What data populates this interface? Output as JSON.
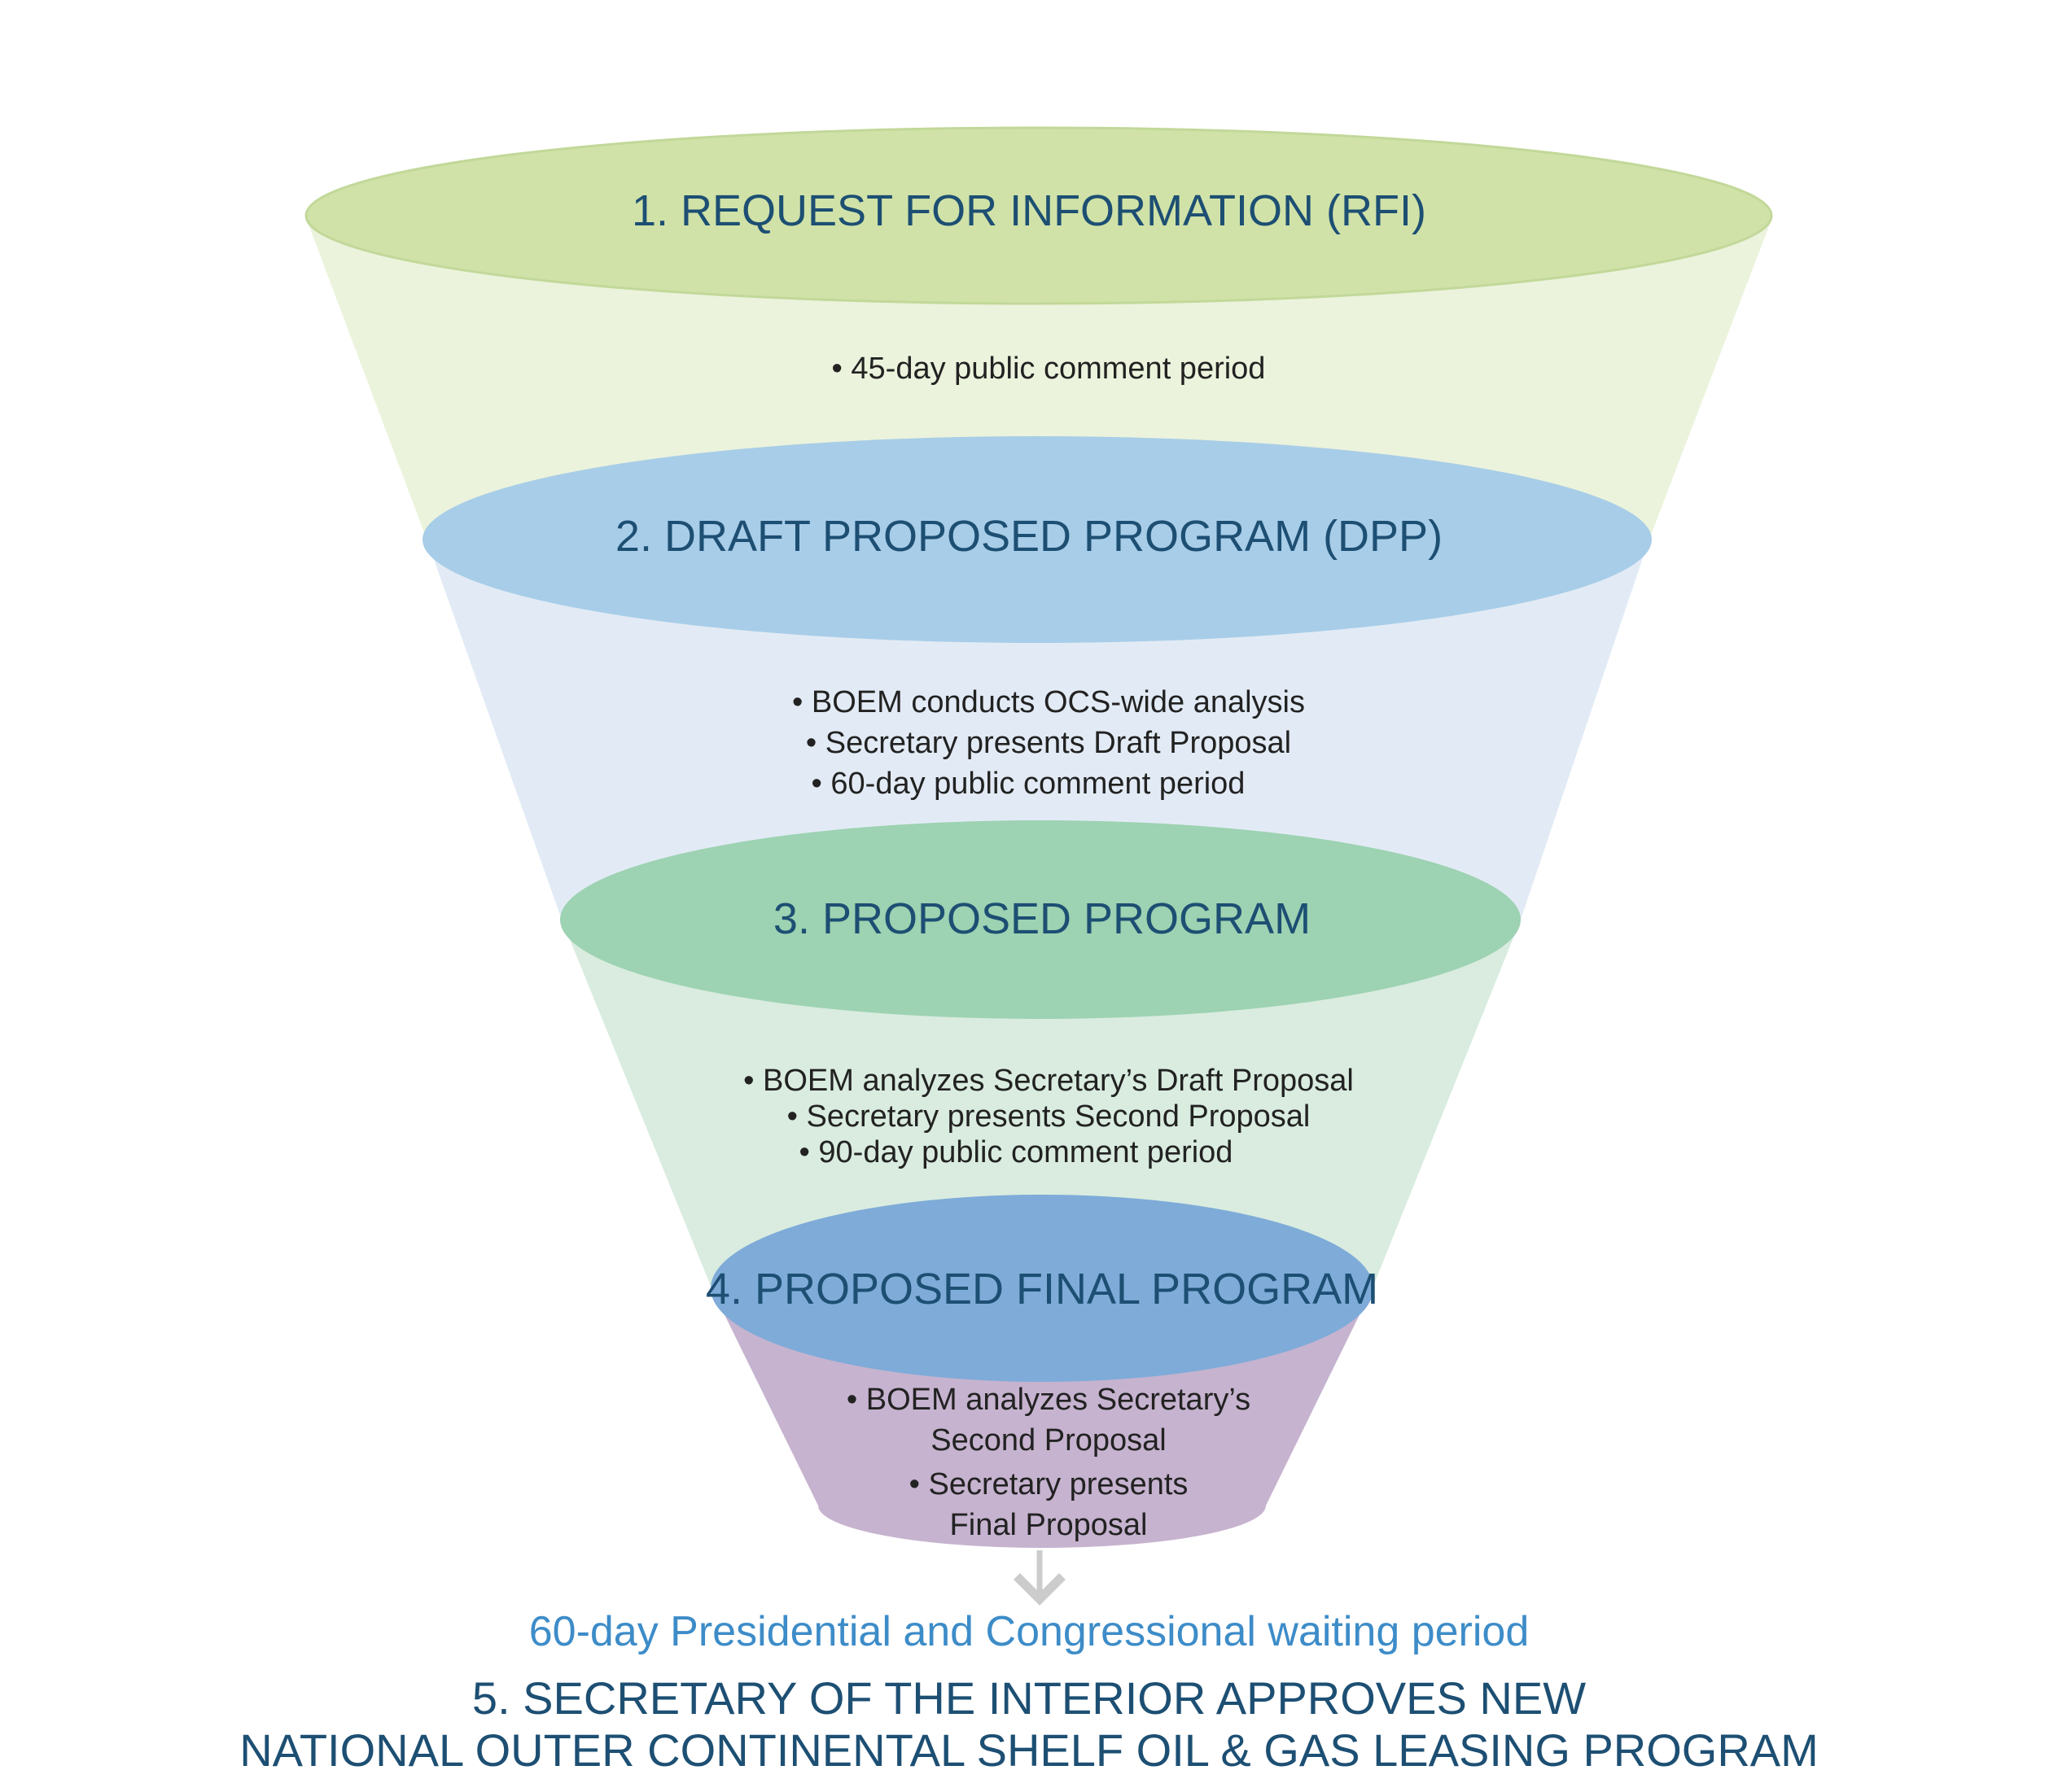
{
  "stages": [
    {
      "title": "1. REQUEST FOR INFORMATION (RFI)",
      "bullets": [
        "• 45-day public comment period"
      ]
    },
    {
      "title": "2. DRAFT PROPOSED PROGRAM (DPP)",
      "bullets": [
        "• BOEM conducts OCS-wide analysis",
        "• Secretary presents Draft Proposal",
        "• 60-day public comment period"
      ]
    },
    {
      "title": "3. PROPOSED PROGRAM",
      "bullets": [
        "• BOEM analyzes Secretary’s Draft Proposal",
        "• Secretary presents Second Proposal",
        "• 90-day public comment period"
      ]
    },
    {
      "title": "4. PROPOSED FINAL PROGRAM",
      "bullets": [
        "• BOEM analyzes Secretary’s",
        "Second Proposal",
        "• Secretary presents",
        "Final Proposal"
      ]
    }
  ],
  "waiting_period": "60-day Presidential and Congressional waiting period",
  "final_step": {
    "line1": "5. SECRETARY OF THE INTERIOR APPROVES NEW",
    "line2": "NATIONAL OUTER CONTINENTAL SHELF OIL & GAS LEASING PROGRAM"
  },
  "colors": {
    "title_text": "#1d4f73",
    "body_text": "#222222",
    "waiting_text": "#3d8cc8",
    "stage1_band": "#ebf3dc",
    "stage1_cap": "#d0e2a8",
    "stage2_band": "#e2ebf5",
    "stage2_cap": "#a8cde8",
    "stage3_band": "#d9ecdf",
    "stage3_cap": "#9dd2b2",
    "stage4_band": "#c6b3cf",
    "stage4_cap": "#7fabd9",
    "arrow": "#cccccc"
  }
}
